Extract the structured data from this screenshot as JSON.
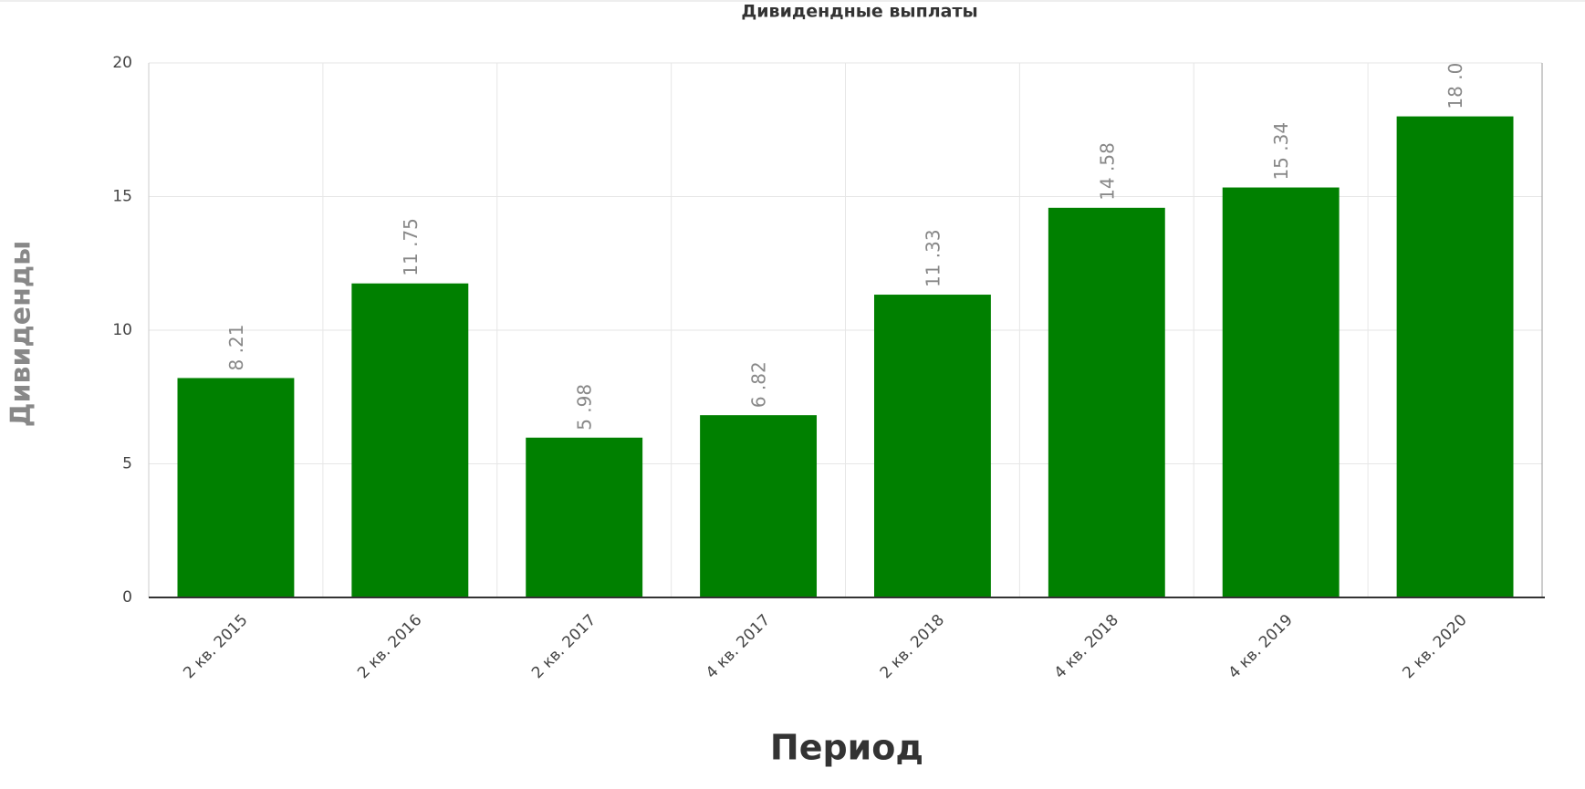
{
  "chart_data": {
    "type": "bar",
    "title": "Дивидендные выплаты",
    "x_label": "Период",
    "y_label": "Дивиденды",
    "categories": [
      "2 кв. 2015",
      "2 кв. 2016",
      "2 кв. 2017",
      "4 кв. 2017",
      "2 кв. 2018",
      "4 кв. 2018",
      "4 кв. 2019",
      "2 кв. 2020"
    ],
    "values": [
      8.21,
      11.75,
      5.98,
      6.82,
      11.33,
      14.58,
      15.34,
      18.0
    ],
    "value_labels": [
      "8 .21",
      "11 .75",
      "5 .98",
      "6 .82",
      "11 .33",
      "14 .58",
      "15 .34",
      "18 .0"
    ],
    "color": "#008000",
    "ylim": [
      0,
      20
    ],
    "yticks": [
      0,
      5,
      10,
      15,
      20
    ],
    "grid": true
  }
}
